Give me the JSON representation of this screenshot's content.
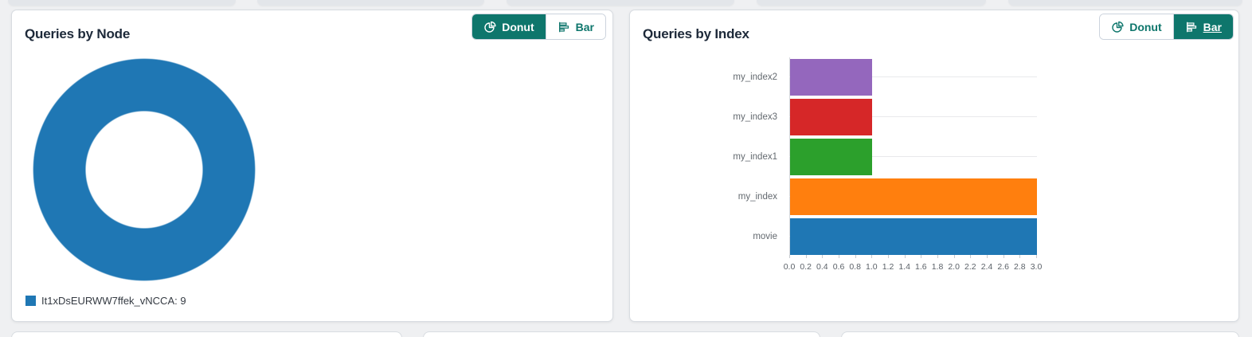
{
  "panels": [
    {
      "title": "Queries by Node",
      "toggle": {
        "options": [
          "Donut",
          "Bar"
        ],
        "selected": "Donut"
      }
    },
    {
      "title": "Queries by Index",
      "toggle": {
        "options": [
          "Donut",
          "Bar"
        ],
        "selected": "Bar"
      }
    }
  ],
  "chart_data": [
    {
      "type": "pie",
      "subtype": "donut",
      "title": "Queries by Node",
      "labels": [
        "It1xDsEURWW7ffek_vNCCA"
      ],
      "values": [
        9
      ],
      "colors": [
        "#1f77b4"
      ],
      "legend_position": "bottom-left",
      "legend_entries": [
        {
          "text": "It1xDsEURWW7ffek_vNCCA: 9",
          "color": "#1f77b4"
        }
      ]
    },
    {
      "type": "bar",
      "orientation": "horizontal",
      "title": "Queries by Index",
      "categories": [
        "my_index2",
        "my_index3",
        "my_index1",
        "my_index",
        "movie"
      ],
      "values": [
        1,
        1,
        1,
        3,
        3
      ],
      "colors": [
        "#9467bd",
        "#d62728",
        "#2ca02c",
        "#ff7f0e",
        "#1f77b4"
      ],
      "xlim": [
        0,
        3
      ],
      "xtick_labels": [
        "0.0",
        "0.2",
        "0.4",
        "0.6",
        "0.8",
        "1.0",
        "1.2",
        "1.4",
        "1.6",
        "1.8",
        "2.0",
        "2.2",
        "2.4",
        "2.6",
        "2.8",
        "3.0"
      ],
      "grid": "horizontal-category-gridlines",
      "legend": false
    }
  ],
  "colors": {
    "accent_teal": "#0e766c",
    "page_bg": "#eff0f2",
    "card_bg": "#ffffff"
  }
}
